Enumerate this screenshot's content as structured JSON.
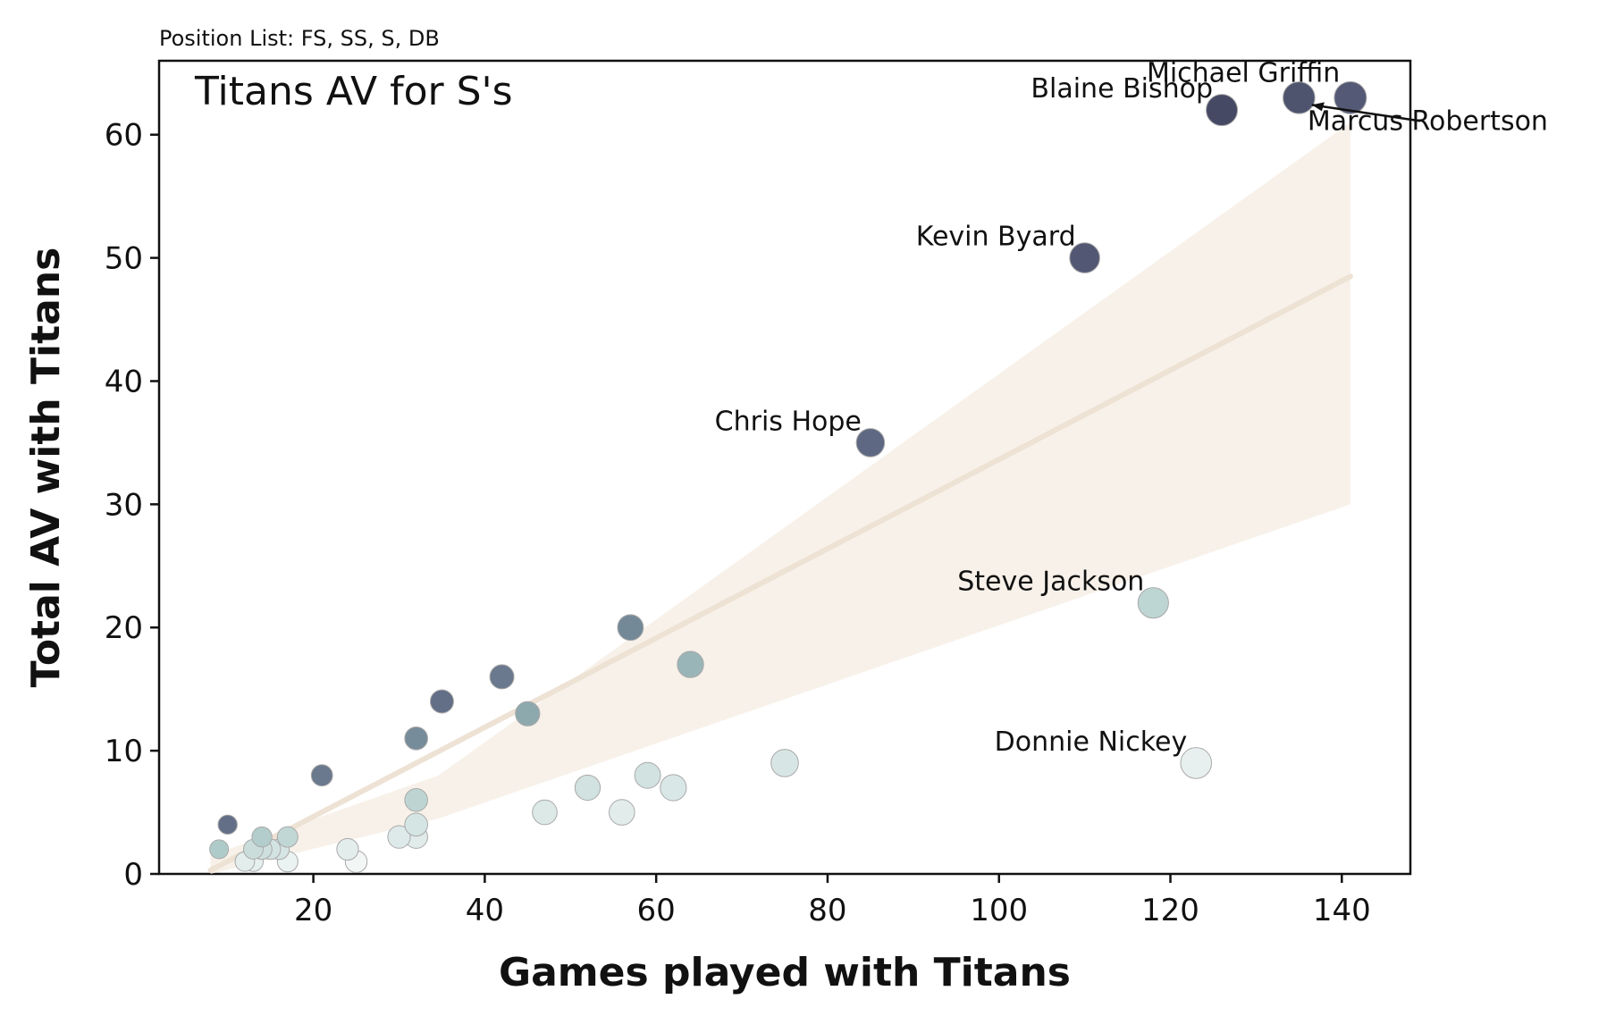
{
  "chart_data": {
    "type": "scatter",
    "title": "Titans AV for S's",
    "subtitle": "Position List: FS, SS, S, DB",
    "xlabel": "Games played with Titans",
    "ylabel": "Total AV with Titans",
    "xlim": [
      2,
      148
    ],
    "ylim": [
      0,
      66
    ],
    "xticks": [
      "20",
      "40",
      "60",
      "80",
      "100",
      "120",
      "140"
    ],
    "yticks": [
      "0",
      "10",
      "20",
      "30",
      "40",
      "50",
      "60"
    ],
    "grid": false,
    "regression": {
      "x": [
        8,
        141
      ],
      "y": [
        0.3,
        48.5
      ],
      "ci_lower": [
        -1.5,
        30
      ],
      "ci_upper": [
        1.5,
        61
      ],
      "color": "#f0e6da"
    },
    "points": [
      {
        "x": 141,
        "y": 63,
        "label": "Marcus Robertson"
      },
      {
        "x": 135,
        "y": 63,
        "label": "Michael Griffin"
      },
      {
        "x": 126,
        "y": 62,
        "label": "Blaine Bishop"
      },
      {
        "x": 110,
        "y": 50,
        "label": "Kevin Byard"
      },
      {
        "x": 85,
        "y": 35,
        "label": "Chris Hope"
      },
      {
        "x": 118,
        "y": 22,
        "label": "Steve Jackson"
      },
      {
        "x": 123,
        "y": 9,
        "label": "Donnie Nickey"
      },
      {
        "x": 57,
        "y": 20,
        "label": ""
      },
      {
        "x": 64,
        "y": 17,
        "label": ""
      },
      {
        "x": 42,
        "y": 16,
        "label": ""
      },
      {
        "x": 35,
        "y": 14,
        "label": ""
      },
      {
        "x": 45,
        "y": 13,
        "label": ""
      },
      {
        "x": 32,
        "y": 11,
        "label": ""
      },
      {
        "x": 75,
        "y": 9,
        "label": ""
      },
      {
        "x": 21,
        "y": 8,
        "label": ""
      },
      {
        "x": 59,
        "y": 8,
        "label": ""
      },
      {
        "x": 52,
        "y": 7,
        "label": ""
      },
      {
        "x": 62,
        "y": 7,
        "label": ""
      },
      {
        "x": 32,
        "y": 6,
        "label": ""
      },
      {
        "x": 47,
        "y": 5,
        "label": ""
      },
      {
        "x": 56,
        "y": 5,
        "label": ""
      },
      {
        "x": 10,
        "y": 4,
        "label": ""
      },
      {
        "x": 32,
        "y": 4,
        "label": ""
      },
      {
        "x": 14,
        "y": 3,
        "label": ""
      },
      {
        "x": 17,
        "y": 3,
        "label": ""
      },
      {
        "x": 30,
        "y": 3,
        "label": ""
      },
      {
        "x": 32,
        "y": 3,
        "label": ""
      },
      {
        "x": 9,
        "y": 2,
        "label": ""
      },
      {
        "x": 13,
        "y": 2,
        "label": ""
      },
      {
        "x": 14,
        "y": 2,
        "label": ""
      },
      {
        "x": 15,
        "y": 2,
        "label": ""
      },
      {
        "x": 16,
        "y": 2,
        "label": ""
      },
      {
        "x": 24,
        "y": 2,
        "label": ""
      },
      {
        "x": 12,
        "y": 1,
        "label": ""
      },
      {
        "x": 13,
        "y": 1,
        "label": ""
      },
      {
        "x": 17,
        "y": 1,
        "label": ""
      },
      {
        "x": 25,
        "y": 1,
        "label": ""
      }
    ]
  }
}
